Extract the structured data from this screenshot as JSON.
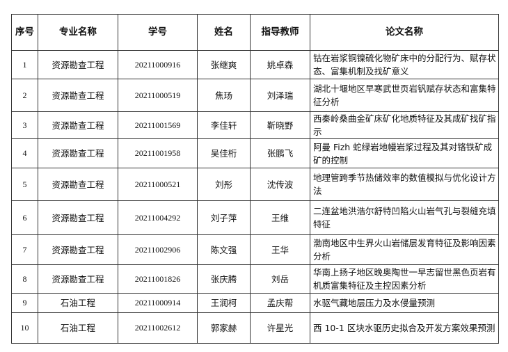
{
  "table": {
    "headers": [
      "序号",
      "专业名称",
      "学号",
      "姓名",
      "指导教师",
      "论文名称"
    ],
    "rows": [
      {
        "no": "1",
        "major": "资源勘查工程",
        "id": "20211000916",
        "name": "张继爽",
        "advisor": "姚卓森",
        "title": "钴在岩浆铜镍硫化物矿床中的分配行为、赋存状态、富集机制及找矿意义"
      },
      {
        "no": "2",
        "major": "资源勘查工程",
        "id": "20211000519",
        "name": "焦玚",
        "advisor": "刘泽瑞",
        "title": "湖北十堰地区早寒武世页岩钒赋存状态和富集特征分析"
      },
      {
        "no": "3",
        "major": "资源勘查工程",
        "id": "20211001569",
        "name": "李佳轩",
        "advisor": "靳晓野",
        "title": "西秦岭桑曲金矿床矿化地质特征及其成矿找矿指示"
      },
      {
        "no": "4",
        "major": "资源勘查工程",
        "id": "20211001958",
        "name": "吴佳桁",
        "advisor": "张鹏飞",
        "title": "阿曼 Fizh 蛇绿岩地幔岩浆过程及其对铬铁矿成矿的控制"
      },
      {
        "no": "5",
        "major": "资源勘查工程",
        "id": "20211000521",
        "name": "刘彤",
        "advisor": "沈传波",
        "title": "地理管跨季节热储效率的数值模拟与优化设计方法"
      },
      {
        "no": "6",
        "major": "资源勘查工程",
        "id": "20211004292",
        "name": "刘子萍",
        "advisor": "王维",
        "title": "二连盆地洪浩尔舒特凹陷火山岩气孔与裂缝充填特征"
      },
      {
        "no": "7",
        "major": "资源勘查工程",
        "id": "20211002906",
        "name": "陈文强",
        "advisor": "王华",
        "title": "渤南地区中生界火山岩储层发育特征及影响因素分析"
      },
      {
        "no": "8",
        "major": "资源勘查工程",
        "id": "20211001826",
        "name": "张庆腾",
        "advisor": "刘岳",
        "title": "华南上扬子地区晚奥陶世一早志留世黑色页岩有机质富集特征及主控因素分析"
      },
      {
        "no": "9",
        "major": "石油工程",
        "id": "20211000914",
        "name": "王润柯",
        "advisor": "孟庆帮",
        "title": "水驱气藏地层压力及水侵量预测"
      },
      {
        "no": "10",
        "major": "石油工程",
        "id": "20211002612",
        "name": "郭家赫",
        "advisor": "许星光",
        "title": "西 10-1 区块水驱历史拟合及开发方案效果预测"
      }
    ]
  }
}
